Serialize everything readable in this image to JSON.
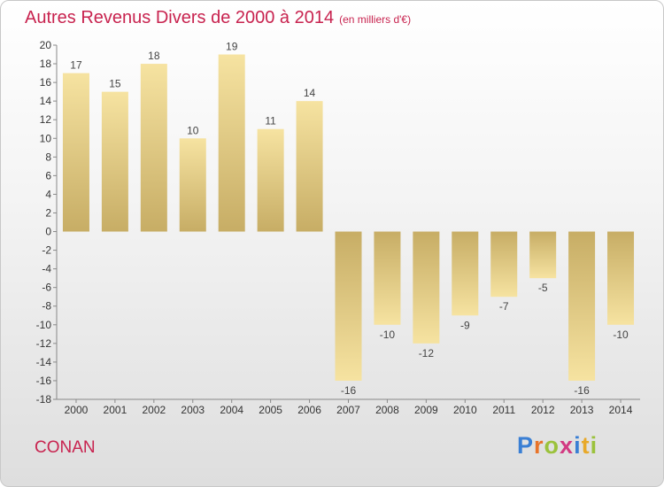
{
  "chart_data": {
    "type": "bar",
    "title": "Autres Revenus Divers de 2000 à 2014",
    "subtitle": "(en milliers d'€)",
    "categories": [
      "2000",
      "2001",
      "2002",
      "2003",
      "2004",
      "2005",
      "2006",
      "2007",
      "2008",
      "2009",
      "2010",
      "2011",
      "2012",
      "2013",
      "2014"
    ],
    "values": [
      17,
      15,
      18,
      10,
      19,
      11,
      14,
      -16,
      -10,
      -12,
      -9,
      -7,
      -5,
      -16,
      -10
    ],
    "ylim": [
      -18,
      20
    ],
    "yticks": [
      20,
      18,
      16,
      14,
      12,
      10,
      8,
      6,
      4,
      2,
      0,
      -2,
      -4,
      -6,
      -8,
      -10,
      -12,
      -14,
      -16,
      -18
    ],
    "grid": false,
    "legend": "none",
    "bar_color_light": "#f6e3a1",
    "bar_color_dark": "#c7ad65"
  },
  "footer": {
    "place": "CONAN",
    "logo_letters": [
      {
        "ch": "P",
        "color": "#3a7fd4"
      },
      {
        "ch": "r",
        "color": "#e8742a"
      },
      {
        "ch": "o",
        "color": "#9bc23c"
      },
      {
        "ch": "x",
        "color": "#d23a82"
      },
      {
        "ch": "i",
        "color": "#3a7fd4"
      },
      {
        "ch": "t",
        "color": "#e8a92a"
      },
      {
        "ch": "i",
        "color": "#9bc23c"
      }
    ]
  }
}
